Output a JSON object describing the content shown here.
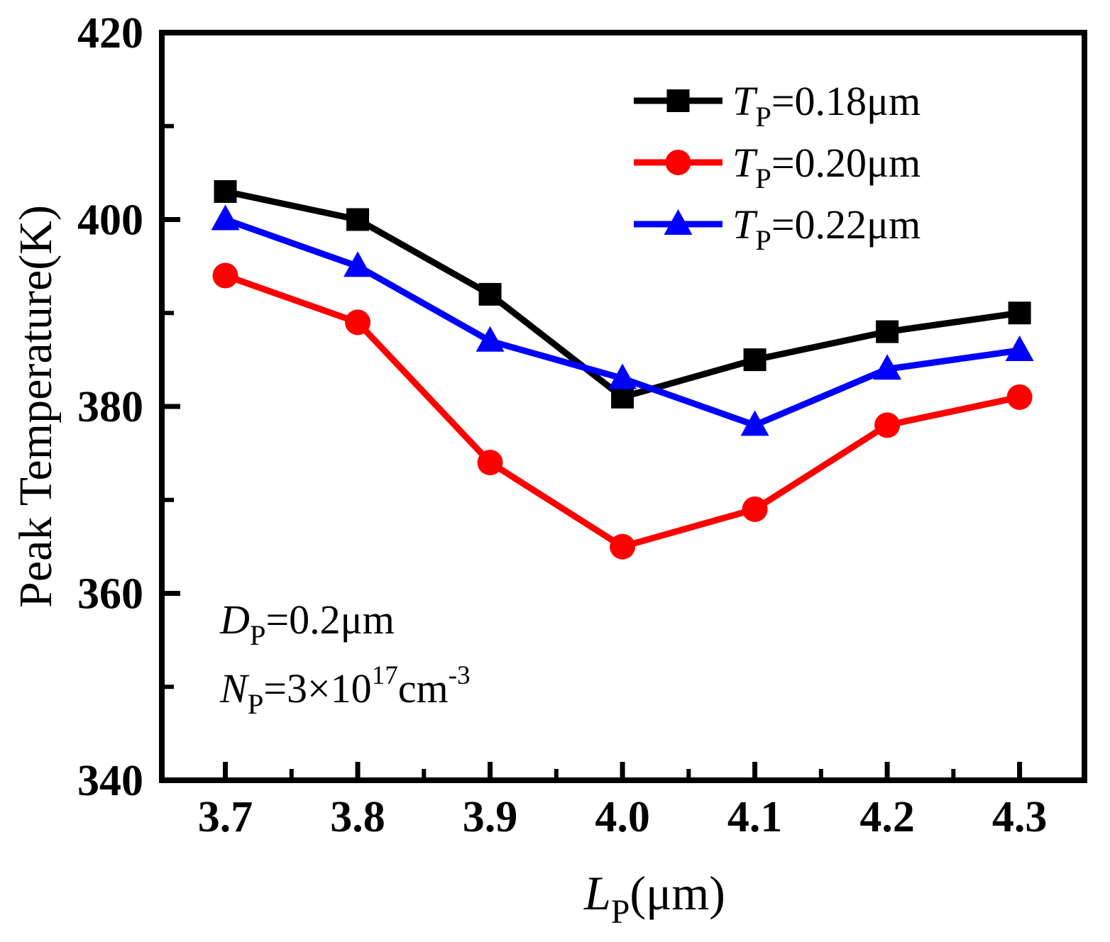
{
  "figure": {
    "background": "#ffffff",
    "title": ""
  },
  "chart_data": {
    "type": "line",
    "title": "",
    "ylabel": "Peak Temperature(K)",
    "xlabel_text": "L_P(um)",
    "xlabel_segments": [
      {
        "t": "L",
        "s": "i"
      },
      {
        "t": "P",
        "s": "sub"
      },
      {
        "t": "(μm)",
        "s": "n"
      }
    ],
    "x": [
      3.7,
      3.8,
      3.9,
      4.0,
      4.1,
      4.2,
      4.3
    ],
    "series": [
      {
        "name": "T_P=0.18um",
        "marker": "square",
        "color": "#000000",
        "values": [
          403,
          400,
          392,
          381,
          385,
          388,
          390
        ],
        "label_segments": [
          {
            "t": "T",
            "s": "i"
          },
          {
            "t": "P",
            "s": "sub"
          },
          {
            "t": "=0.18μm",
            "s": "n"
          }
        ]
      },
      {
        "name": "T_P=0.20um",
        "marker": "circle",
        "color": "#fe0000",
        "values": [
          394,
          389,
          374,
          365,
          369,
          378,
          381
        ],
        "label_segments": [
          {
            "t": "T",
            "s": "i"
          },
          {
            "t": "P",
            "s": "sub"
          },
          {
            "t": "=0.20μm",
            "s": "n"
          }
        ]
      },
      {
        "name": "T_P=0.22um",
        "marker": "triangle",
        "color": "#0000fe",
        "values": [
          400,
          395,
          387,
          383,
          378,
          384,
          386
        ],
        "label_segments": [
          {
            "t": "T",
            "s": "i"
          },
          {
            "t": "P",
            "s": "sub"
          },
          {
            "t": "=0.22μm",
            "s": "n"
          }
        ]
      }
    ],
    "xlim": [
      3.652,
      4.349
    ],
    "ylim": [
      340,
      420
    ],
    "xticks": {
      "major": [
        3.7,
        3.8,
        3.9,
        4.0,
        4.1,
        4.2,
        4.3
      ],
      "labels": [
        "3.7",
        "3.8",
        "3.9",
        "4.0",
        "4.1",
        "4.2",
        "4.3"
      ],
      "minor": [
        3.75,
        3.85,
        3.95,
        4.05,
        4.15,
        4.25
      ]
    },
    "yticks": {
      "labeled": [
        340,
        360,
        380,
        400,
        420
      ],
      "labels": [
        "340",
        "360",
        "380",
        "400",
        "420"
      ],
      "tick_majors": [
        360,
        380,
        400
      ],
      "minor": [
        350,
        370,
        390,
        410
      ]
    },
    "grid": false,
    "legend_position": "top-right",
    "annotations": [
      {
        "text": "D_P=0.2um",
        "segments": [
          {
            "t": "D",
            "s": "i"
          },
          {
            "t": "P",
            "s": "sub"
          },
          {
            "t": "=0.2μm",
            "s": "n"
          }
        ]
      },
      {
        "text": "N_P=3x10^17cm^-3",
        "segments": [
          {
            "t": "N",
            "s": "i"
          },
          {
            "t": "P",
            "s": "sub"
          },
          {
            "t": "=3×10",
            "s": "n"
          },
          {
            "t": "17",
            "s": "sup"
          },
          {
            "t": "cm",
            "s": "n"
          },
          {
            "t": "-3",
            "s": "sup"
          }
        ]
      }
    ]
  }
}
